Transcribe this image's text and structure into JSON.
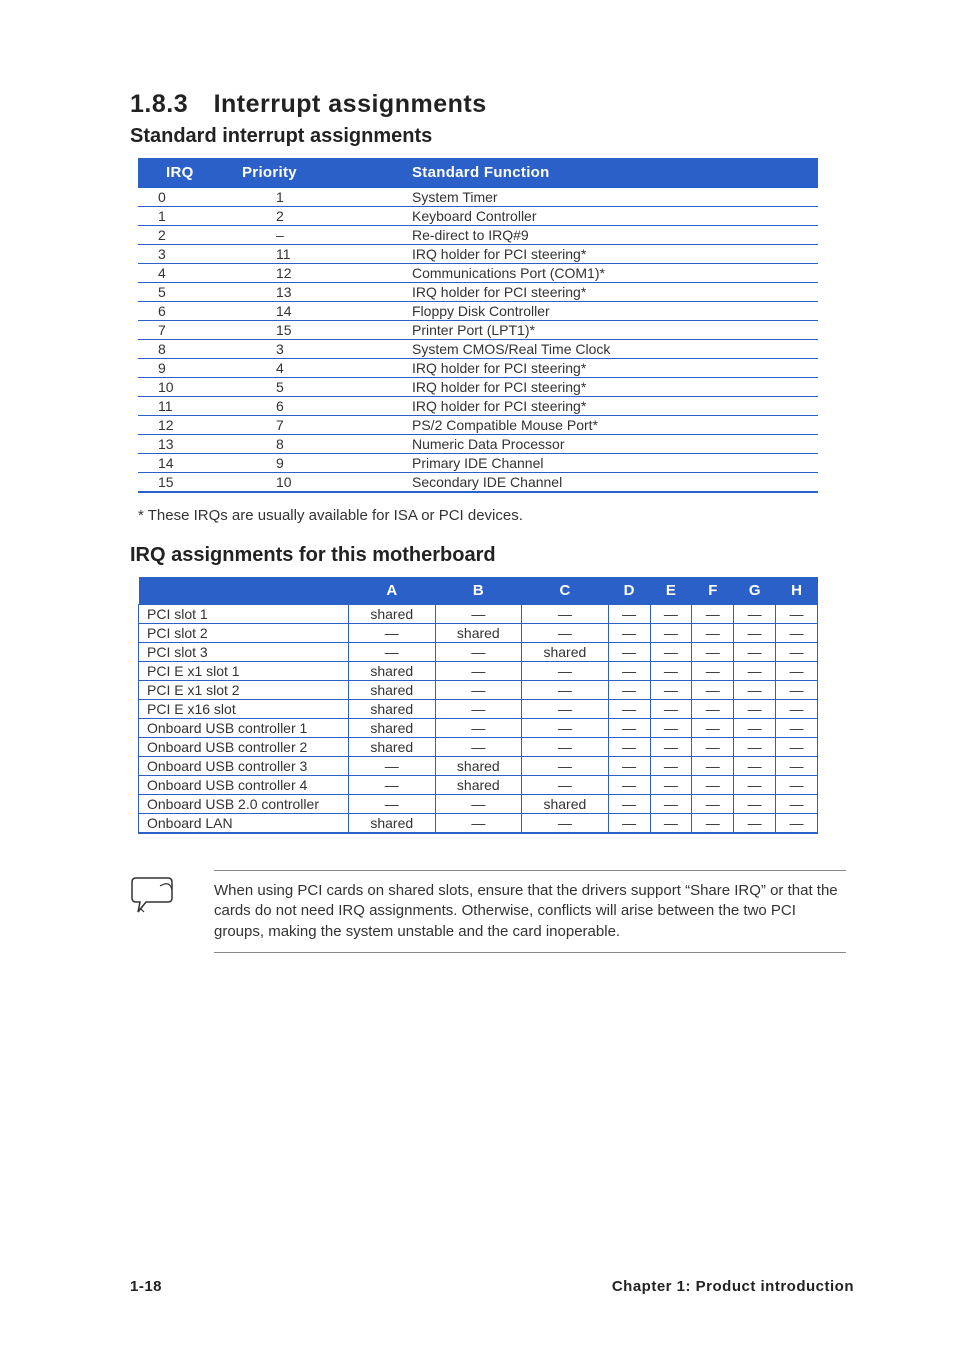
{
  "section": {
    "number": "1.8.3",
    "title": "Interrupt assignments"
  },
  "sub1": "Standard interrupt assignments",
  "sub2": "IRQ assignments for this motherboard",
  "irq_table": {
    "headers": {
      "irq": "IRQ",
      "priority": "Priority",
      "func": "Standard Function"
    },
    "rows": [
      {
        "irq": "0",
        "pri": "1",
        "func": "System Timer"
      },
      {
        "irq": "1",
        "pri": "2",
        "func": "Keyboard Controller"
      },
      {
        "irq": "2",
        "pri": "–",
        "func": "Re-direct to IRQ#9"
      },
      {
        "irq": "3",
        "pri": "11",
        "func": "IRQ holder for PCI steering*"
      },
      {
        "irq": "4",
        "pri": "12",
        "func": "Communications Port (COM1)*"
      },
      {
        "irq": "5",
        "pri": "13",
        "func": "IRQ holder for PCI steering*"
      },
      {
        "irq": "6",
        "pri": "14",
        "func": "Floppy Disk Controller"
      },
      {
        "irq": "7",
        "pri": "15",
        "func": "Printer Port (LPT1)*"
      },
      {
        "irq": "8",
        "pri": "3",
        "func": "System CMOS/Real Time Clock"
      },
      {
        "irq": "9",
        "pri": "4",
        "func": "IRQ holder for PCI steering*"
      },
      {
        "irq": "10",
        "pri": "5",
        "func": "IRQ holder for PCI steering*"
      },
      {
        "irq": "11",
        "pri": "6",
        "func": "IRQ holder for PCI steering*"
      },
      {
        "irq": "12",
        "pri": "7",
        "func": "PS/2 Compatible Mouse Port*"
      },
      {
        "irq": "13",
        "pri": "8",
        "func": "Numeric Data Processor"
      },
      {
        "irq": "14",
        "pri": "9",
        "func": "Primary IDE Channel"
      },
      {
        "irq": "15",
        "pri": "10",
        "func": "Secondary IDE Channel"
      }
    ]
  },
  "footnote": "* These IRQs are usually available for ISA or PCI devices.",
  "mb_table": {
    "cols": [
      "A",
      "B",
      "C",
      "D",
      "E",
      "F",
      "G",
      "H"
    ],
    "rows": [
      {
        "label": "PCI slot 1",
        "cells": [
          "shared",
          "—",
          "—",
          "—",
          "—",
          "—",
          "—",
          "—"
        ]
      },
      {
        "label": "PCI slot 2",
        "cells": [
          "—",
          "shared",
          "—",
          "—",
          "—",
          "—",
          "—",
          "—"
        ]
      },
      {
        "label": "PCI slot 3",
        "cells": [
          "—",
          "—",
          "shared",
          "—",
          "—",
          "—",
          "—",
          "—"
        ]
      },
      {
        "label": "PCI E x1 slot 1",
        "cells": [
          "shared",
          "—",
          "—",
          "—",
          "—",
          "—",
          "—",
          "—"
        ]
      },
      {
        "label": "PCI E x1 slot 2",
        "cells": [
          "shared",
          "—",
          "—",
          "—",
          "—",
          "—",
          "—",
          "—"
        ]
      },
      {
        "label": "PCI E x16 slot",
        "cells": [
          "shared",
          "—",
          "—",
          "—",
          "—",
          "—",
          "—",
          "—"
        ]
      },
      {
        "label": "Onboard USB controller 1",
        "cells": [
          "shared",
          "—",
          "—",
          "—",
          "—",
          "—",
          "—",
          "—"
        ]
      },
      {
        "label": "Onboard USB controller 2",
        "cells": [
          "shared",
          "—",
          "—",
          "—",
          "—",
          "—",
          "—",
          "—"
        ]
      },
      {
        "label": "Onboard USB controller 3",
        "cells": [
          "—",
          "shared",
          "—",
          "—",
          "—",
          "—",
          "—",
          "—"
        ]
      },
      {
        "label": "Onboard USB controller 4",
        "cells": [
          "—",
          "shared",
          "—",
          "—",
          "—",
          "—",
          "—",
          "—"
        ]
      },
      {
        "label": "Onboard USB 2.0 controller",
        "cells": [
          "—",
          "—",
          "shared",
          "—",
          "—",
          "—",
          "—",
          "—"
        ]
      },
      {
        "label": "Onboard LAN",
        "cells": [
          "shared",
          "—",
          "—",
          "—",
          "—",
          "—",
          "—",
          "—"
        ]
      }
    ]
  },
  "note": "When using PCI cards on shared slots, ensure that the drivers support “Share IRQ” or that the cards do not need IRQ assignments. Otherwise, conflicts will arise between the two PCI groups, making the system unstable and the card inoperable.",
  "footer": {
    "page": "1-18",
    "chapter": "Chapter 1: Product introduction"
  },
  "colors": {
    "header_bg": "#2a60c8",
    "border": "#2a60c8",
    "text": "#333333",
    "rule": "#888888",
    "background": "#ffffff"
  },
  "typography": {
    "heading_font": "Trebuchet MS",
    "body_font": "Arial",
    "section_size_pt": 19,
    "subheading_size_pt": 15,
    "body_size_pt": 11
  }
}
